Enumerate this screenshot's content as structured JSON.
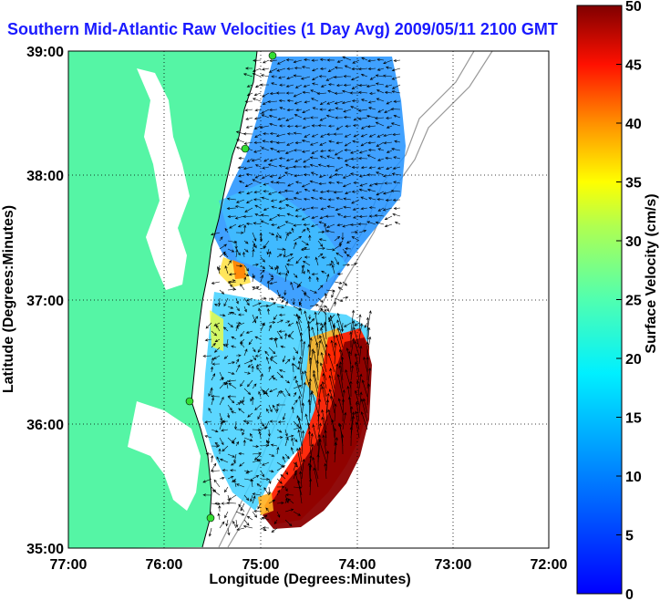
{
  "title": "Southern Mid-Atlantic Raw Velocities (1 Day Avg) 2009/05/11 2100 GMT",
  "xlabel": "Longitude (Degrees:Minutes)",
  "ylabel": "Latitude (Degrees:Minutes)",
  "colorbar_label": "Surface Velocity (cm/s)",
  "x_ticks": [
    "77:00",
    "76:00",
    "75:00",
    "74:00",
    "73:00",
    "72:00"
  ],
  "y_ticks": [
    "39:00",
    "38:00",
    "37:00",
    "36:00",
    "35:00"
  ],
  "colorbar_ticks": [
    "50",
    "45",
    "40",
    "35",
    "30",
    "25",
    "20",
    "15",
    "10",
    "5",
    "0"
  ],
  "colors": {
    "land": "#55f5a5",
    "title": "#1a1aff",
    "station": "#33dd33"
  },
  "map_data": {
    "lon_range": [
      -77,
      -72
    ],
    "lat_range": [
      35,
      39
    ],
    "velocity_range_cm_s": [
      0,
      50
    ],
    "grid": "dotted"
  }
}
